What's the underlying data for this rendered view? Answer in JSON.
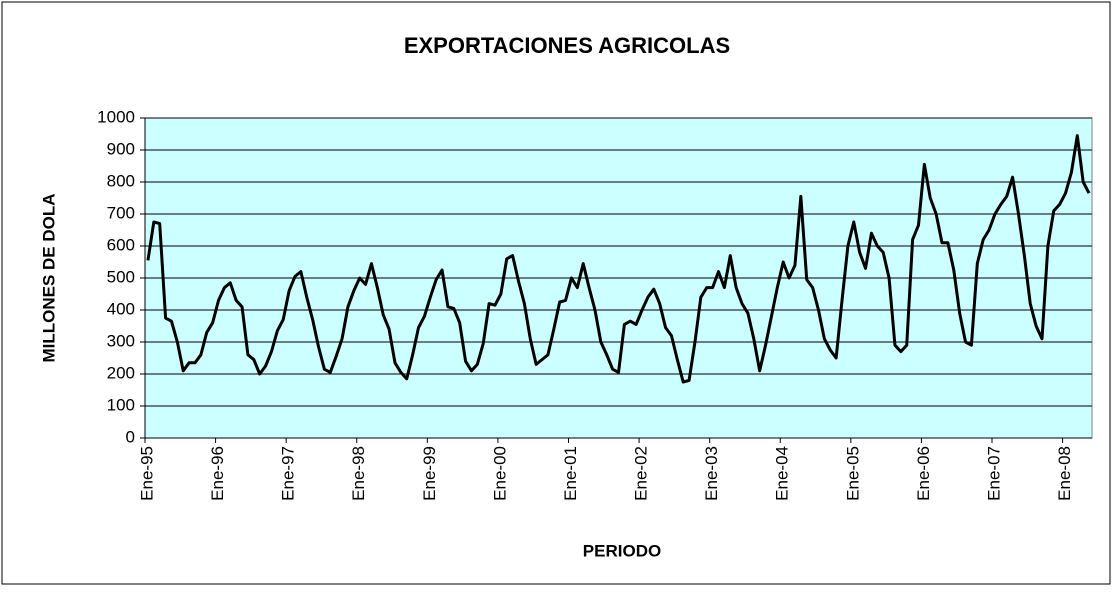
{
  "chart_data": {
    "type": "line",
    "title": "EXPORTACIONES AGRICOLAS",
    "x_label": "PERIODO",
    "y_label": "MILLONES DE DOLA",
    "categories": [
      "Ene-95",
      null,
      null,
      null,
      null,
      null,
      null,
      null,
      null,
      null,
      null,
      null,
      "Ene-96",
      null,
      null,
      null,
      null,
      null,
      null,
      null,
      null,
      null,
      null,
      null,
      "Ene-97",
      null,
      null,
      null,
      null,
      null,
      null,
      null,
      null,
      null,
      null,
      null,
      "Ene-98",
      null,
      null,
      null,
      null,
      null,
      null,
      null,
      null,
      null,
      null,
      null,
      "Ene-99",
      null,
      null,
      null,
      null,
      null,
      null,
      null,
      null,
      null,
      null,
      null,
      "Ene-00",
      null,
      null,
      null,
      null,
      null,
      null,
      null,
      null,
      null,
      null,
      null,
      "Ene-01",
      null,
      null,
      null,
      null,
      null,
      null,
      null,
      null,
      null,
      null,
      null,
      "Ene-02",
      null,
      null,
      null,
      null,
      null,
      null,
      null,
      null,
      null,
      null,
      null,
      "Ene-03",
      null,
      null,
      null,
      null,
      null,
      null,
      null,
      null,
      null,
      null,
      null,
      "Ene-04",
      null,
      null,
      null,
      null,
      null,
      null,
      null,
      null,
      null,
      null,
      null,
      "Ene-05",
      null,
      null,
      null,
      null,
      null,
      null,
      null,
      null,
      null,
      null,
      null,
      "Ene-06",
      null,
      null,
      null,
      null,
      null,
      null,
      null,
      null,
      null,
      null,
      null,
      "Ene-07",
      null,
      null,
      null,
      null,
      null,
      null,
      null,
      null,
      null,
      null,
      null,
      "Ene-08",
      null,
      null,
      null,
      null
    ],
    "values": [
      555,
      675,
      670,
      375,
      365,
      300,
      210,
      235,
      235,
      260,
      330,
      360,
      430,
      470,
      485,
      430,
      410,
      260,
      245,
      200,
      225,
      270,
      335,
      370,
      460,
      505,
      520,
      440,
      370,
      285,
      215,
      205,
      255,
      310,
      410,
      460,
      500,
      480,
      545,
      470,
      385,
      340,
      235,
      205,
      185,
      260,
      345,
      380,
      440,
      495,
      525,
      410,
      405,
      360,
      240,
      210,
      230,
      295,
      420,
      415,
      450,
      560,
      570,
      490,
      420,
      310,
      230,
      245,
      260,
      340,
      425,
      430,
      500,
      470,
      545,
      470,
      400,
      300,
      260,
      215,
      205,
      355,
      365,
      355,
      400,
      440,
      465,
      420,
      345,
      320,
      245,
      175,
      180,
      300,
      440,
      470,
      470,
      520,
      470,
      570,
      470,
      420,
      390,
      310,
      210,
      290,
      380,
      470,
      550,
      500,
      540,
      755,
      495,
      470,
      400,
      310,
      275,
      250,
      430,
      600,
      675,
      580,
      530,
      640,
      600,
      580,
      500,
      290,
      270,
      290,
      620,
      665,
      855,
      750,
      700,
      610,
      610,
      525,
      390,
      300,
      290,
      545,
      620,
      650,
      700,
      730,
      755,
      815,
      700,
      570,
      420,
      350,
      310,
      600,
      710,
      730,
      765,
      830,
      945,
      800,
      765
    ],
    "color": "#000000",
    "background": "#ccffff",
    "ylim": [
      0,
      1000
    ],
    "yticks": [
      0,
      100,
      200,
      300,
      400,
      500,
      600,
      700,
      800,
      900,
      1000
    ],
    "grid": true
  }
}
